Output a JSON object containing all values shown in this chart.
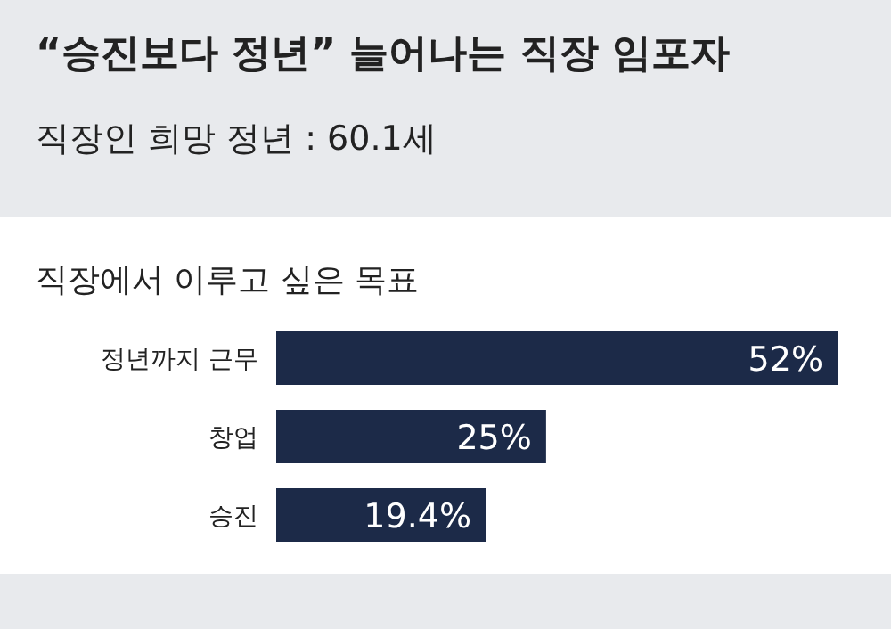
{
  "chart_data": {
    "type": "bar",
    "orientation": "horizontal",
    "title": "“승진보다 정년” 늘어나는 직장 임포자",
    "subtitle": "직장인 희망 정년 : 60.1세",
    "annotations": [
      "직장에서 이루고 싶은 목표"
    ],
    "categories": [
      "정년까지 근무",
      "창업",
      "승진"
    ],
    "values": [
      52,
      25,
      19.4
    ],
    "value_labels": [
      "52%",
      "25%",
      "19.4%"
    ],
    "color": "#1c2a48"
  }
}
